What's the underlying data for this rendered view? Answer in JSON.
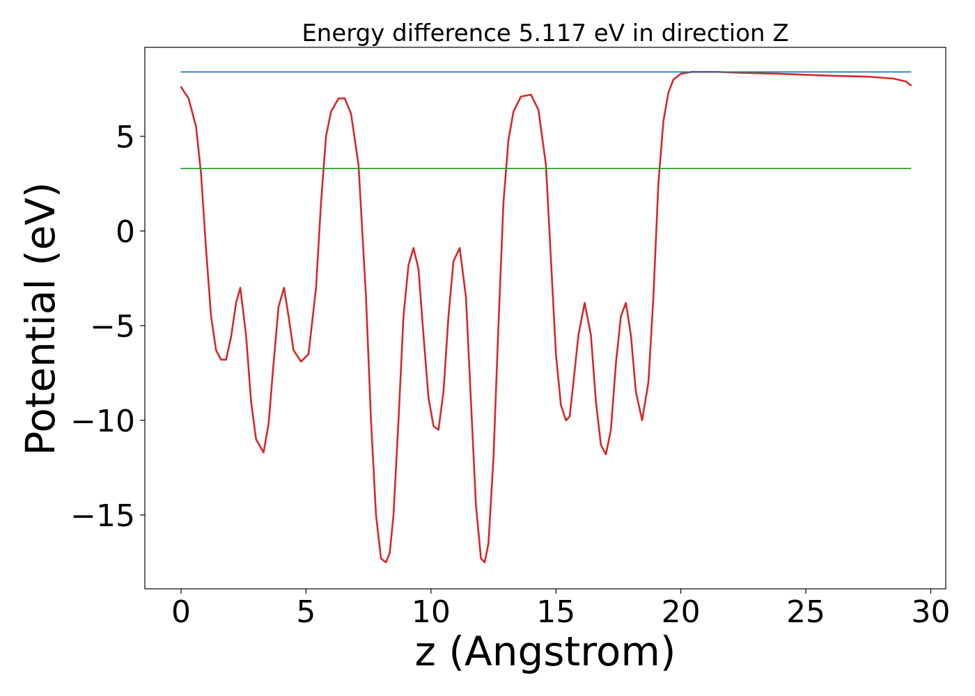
{
  "chart_data": {
    "type": "line",
    "title": "Energy difference 5.117 eV in direction Z",
    "xlabel": "z (Angstrom)",
    "ylabel": "Potential (eV)",
    "xlim": [
      -1.45,
      30.6
    ],
    "ylim": [
      -18.9,
      9.7
    ],
    "xticks": [
      0,
      5,
      10,
      15,
      20,
      25,
      30
    ],
    "xtick_labels": [
      "0",
      "5",
      "10",
      "15",
      "20",
      "25",
      "30"
    ],
    "yticks": [
      5,
      0,
      -5,
      -10,
      -15
    ],
    "ytick_labels": [
      "5",
      "0",
      "−5",
      "−10",
      "−15"
    ],
    "grid": false,
    "legend": "none",
    "series": [
      {
        "color": "#d62728",
        "x": [
          0,
          0.3,
          0.6,
          0.8,
          1.0,
          1.2,
          1.4,
          1.6,
          1.8,
          2.0,
          2.2,
          2.37,
          2.6,
          2.8,
          3.0,
          3.3,
          3.5,
          3.7,
          3.9,
          4.12,
          4.3,
          4.5,
          4.8,
          5.1,
          5.4,
          5.6,
          5.8,
          6.0,
          6.3,
          6.55,
          6.8,
          7.1,
          7.4,
          7.6,
          7.8,
          8.0,
          8.2,
          8.35,
          8.5,
          8.7,
          8.9,
          9.1,
          9.3,
          9.5,
          9.7,
          9.9,
          10.1,
          10.3,
          10.5,
          10.7,
          10.9,
          11.15,
          11.4,
          11.6,
          11.8,
          12.0,
          12.15,
          12.3,
          12.5,
          12.7,
          12.9,
          13.1,
          13.3,
          13.6,
          14.0,
          14.3,
          14.6,
          14.8,
          15.0,
          15.2,
          15.4,
          15.55,
          15.7,
          15.9,
          16.15,
          16.4,
          16.6,
          16.8,
          17.0,
          17.2,
          17.4,
          17.6,
          17.8,
          18.0,
          18.2,
          18.45,
          18.7,
          18.9,
          19.1,
          19.3,
          19.5,
          19.7,
          20.0,
          20.4,
          21.0,
          21.5,
          22.5,
          24.0,
          26.0,
          27.5,
          28.5,
          29.0,
          29.2
        ],
        "y": [
          7.6,
          7.0,
          5.5,
          3.0,
          -1.0,
          -4.5,
          -6.3,
          -6.8,
          -6.8,
          -5.6,
          -3.8,
          -3.0,
          -5.5,
          -9.0,
          -11.0,
          -11.7,
          -10.2,
          -7.0,
          -4.0,
          -3.0,
          -4.5,
          -6.3,
          -6.9,
          -6.5,
          -3.0,
          1.5,
          5.0,
          6.3,
          7.0,
          7.0,
          6.2,
          3.5,
          -3.5,
          -10.0,
          -15.0,
          -17.3,
          -17.5,
          -17.0,
          -15.0,
          -10.0,
          -4.5,
          -1.8,
          -0.9,
          -2.0,
          -5.5,
          -8.8,
          -10.3,
          -10.5,
          -8.5,
          -4.5,
          -1.6,
          -0.9,
          -3.5,
          -9.0,
          -14.5,
          -17.3,
          -17.5,
          -16.5,
          -12.0,
          -5.0,
          1.5,
          4.8,
          6.3,
          7.1,
          7.2,
          6.4,
          3.5,
          -1.5,
          -6.5,
          -9.2,
          -10.0,
          -9.8,
          -8.0,
          -5.5,
          -3.8,
          -5.5,
          -9.0,
          -11.3,
          -11.8,
          -10.5,
          -7.0,
          -4.5,
          -3.8,
          -5.5,
          -8.5,
          -10.0,
          -8.0,
          -3.5,
          2.5,
          5.8,
          7.3,
          8.0,
          8.3,
          8.4,
          8.4,
          8.4,
          8.35,
          8.3,
          8.2,
          8.15,
          8.05,
          7.9,
          7.7
        ]
      },
      {
        "color": "#1f77b4",
        "x": [
          0,
          29.2
        ],
        "y": [
          8.4,
          8.4
        ]
      },
      {
        "color": "#2ca02c",
        "x": [
          0,
          29.2
        ],
        "y": [
          3.3,
          3.3
        ]
      }
    ]
  }
}
